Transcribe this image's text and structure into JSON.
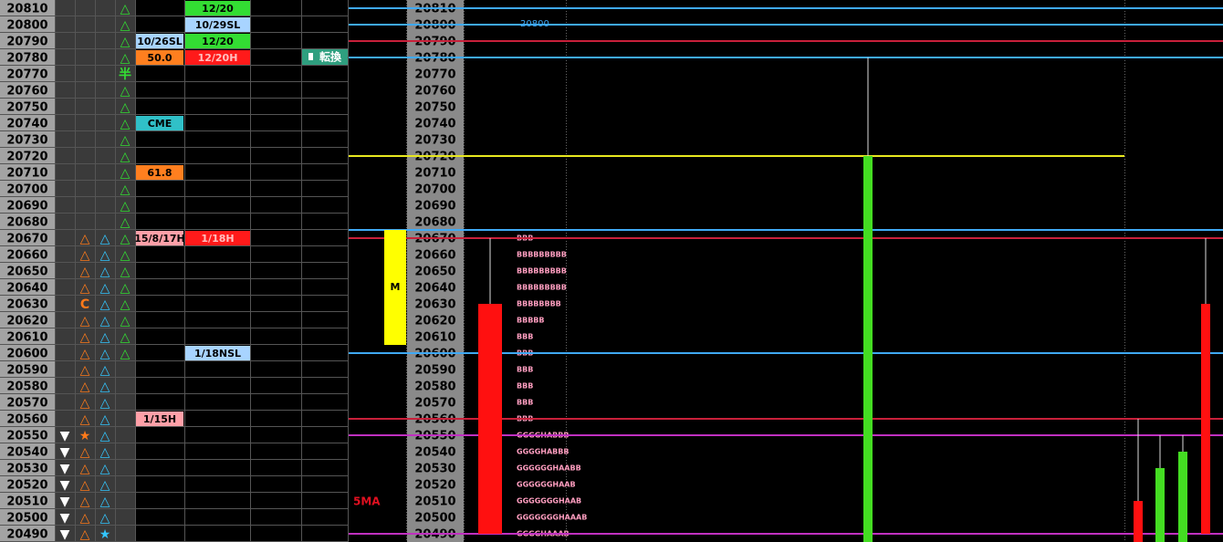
{
  "ladder": {
    "prices": [
      20810,
      20800,
      20790,
      20780,
      20770,
      20760,
      20750,
      20740,
      20730,
      20720,
      20710,
      20700,
      20690,
      20680,
      20670,
      20660,
      20650,
      20640,
      20630,
      20620,
      20610,
      20600,
      20590,
      20580,
      20570,
      20560,
      20550,
      20540,
      20530,
      20520,
      20510,
      20500,
      20490
    ],
    "col_b": {
      "color": "#ffffff",
      "marks": [
        null,
        null,
        null,
        null,
        null,
        null,
        null,
        null,
        null,
        null,
        null,
        null,
        null,
        null,
        null,
        null,
        null,
        null,
        null,
        null,
        null,
        null,
        null,
        null,
        null,
        null,
        "▼",
        "▼",
        "▼",
        "▼",
        "▼",
        "▼",
        "▼"
      ]
    },
    "col_c": {
      "color": "#ff7a1a",
      "marks": [
        null,
        null,
        null,
        null,
        null,
        null,
        null,
        null,
        null,
        null,
        null,
        null,
        null,
        null,
        "△",
        "△",
        "△",
        "△",
        "C",
        "△",
        "△",
        "△",
        "△",
        "△",
        "△",
        "△",
        "★",
        "△",
        "△",
        "△",
        "△",
        "△",
        "△"
      ]
    },
    "col_d": {
      "color": "#33c6ff",
      "marks": [
        null,
        null,
        null,
        null,
        null,
        null,
        null,
        null,
        null,
        null,
        null,
        null,
        null,
        null,
        "△",
        "△",
        "△",
        "△",
        "△",
        "△",
        "△",
        "△",
        "△",
        "△",
        "△",
        "△",
        "△",
        "△",
        "△",
        "△",
        "△",
        "△",
        "★"
      ]
    },
    "col_e": {
      "color": "#33dd33",
      "marks": [
        "△",
        "△",
        "△",
        "△",
        "半",
        "△",
        "△",
        "△",
        "△",
        "△",
        "△",
        "△",
        "△",
        "△",
        "△",
        "△",
        "△",
        "△",
        "△",
        "△",
        "△",
        "△",
        null,
        null,
        null,
        null,
        null,
        null,
        null,
        null,
        null,
        null,
        null
      ]
    },
    "col_f": [
      null,
      null,
      {
        "text": "10/26SL",
        "bg": "#a8d4ff",
        "color": "#000000"
      },
      {
        "text": "50.0",
        "bg": "#ff7f1f",
        "color": "#000000"
      },
      null,
      null,
      null,
      {
        "text": "CME",
        "bg": "#30c0c8",
        "color": "#000000"
      },
      null,
      null,
      {
        "text": "61.8",
        "bg": "#ff7f1f",
        "color": "#000000"
      },
      null,
      null,
      null,
      {
        "text": "15/8/17H",
        "bg": "#ffa0a8",
        "color": "#000000"
      },
      null,
      null,
      null,
      null,
      null,
      null,
      null,
      null,
      null,
      null,
      {
        "text": "1/15H",
        "bg": "#ffa0a8",
        "color": "#000000"
      },
      null,
      null,
      null,
      null,
      null,
      null,
      null
    ],
    "col_g": [
      {
        "text": "12/20",
        "bg": "#33dd33",
        "color": "#000000"
      },
      {
        "text": "10/29SL",
        "bg": "#a8d4ff",
        "color": "#000000"
      },
      {
        "text": "12/20",
        "bg": "#33dd33",
        "color": "#000000"
      },
      {
        "text": "12/20H",
        "bg": "#ff1a1a",
        "color": "#ffc0c0"
      },
      null,
      null,
      null,
      null,
      null,
      null,
      null,
      null,
      null,
      null,
      {
        "text": "1/18H",
        "bg": "#ff1a1a",
        "color": "#ffc0c0"
      },
      null,
      null,
      null,
      null,
      null,
      null,
      {
        "text": "1/18NSL",
        "bg": "#a8d4ff",
        "color": "#000000"
      },
      null,
      null,
      null,
      null,
      null,
      null,
      null,
      null,
      null,
      null,
      null
    ]
  },
  "button": {
    "label": "転換"
  },
  "chart": {
    "ma_label": "5MA",
    "levels": [
      {
        "price": 20810,
        "color": "#3fa9f5"
      },
      {
        "price": 20800,
        "color": "#3fa9f5",
        "labeled": true
      },
      {
        "price": 20790,
        "color": "#c8203a"
      },
      {
        "price": 20780,
        "color": "#3fa9f5"
      },
      {
        "price": 20720,
        "color": "#e8e820"
      },
      {
        "price": 20675,
        "color": "#3fa9f5"
      },
      {
        "price": 20670,
        "color": "#c8203a"
      },
      {
        "price": 20600,
        "color": "#3fa9f5"
      },
      {
        "price": 20560,
        "color": "#c8203a"
      },
      {
        "price": 20550,
        "color": "#c030c0"
      },
      {
        "price": 20490,
        "color": "#c030c0"
      }
    ],
    "value_area": {
      "label": "M",
      "high": 20675,
      "low": 20605,
      "color": "#ffff00"
    },
    "tpo": [
      null,
      null,
      null,
      null,
      null,
      null,
      null,
      null,
      null,
      null,
      null,
      null,
      null,
      null,
      "BBB",
      "BBBBBBBBB",
      "BBBBBBBBB",
      "BBBBBBBBB",
      "BBBBBBBB",
      "BBBBB",
      "BBB",
      "BBB",
      "BBB",
      "BBB",
      "BBB",
      "BBB",
      "GGGGHABBB",
      "GGGGHABBB",
      "GGGGGGHAABB",
      "GGGGGGHAAB",
      "GGGGGGGHAAB",
      "GGGGGGGHAAAB",
      "GGGGHAAAB"
    ],
    "candles": [
      {
        "color": "#ff1010",
        "open": 20630,
        "close": 20490,
        "high": 20670,
        "low": 20490
      },
      {
        "color": "#44dd22",
        "open": 20480,
        "close": 20720,
        "high": 20780,
        "low": 20480
      },
      {
        "color": "#ff1010",
        "open": 20510,
        "close": 20480,
        "high": 20560,
        "low": 20480
      },
      {
        "color": "#44dd22",
        "open": 20480,
        "close": 20530,
        "high": 20550,
        "low": 20480
      },
      {
        "color": "#44dd22",
        "open": 20480,
        "close": 20540,
        "high": 20550,
        "low": 20480
      },
      {
        "color": "#ff1010",
        "open": 20630,
        "close": 20490,
        "high": 20670,
        "low": 20490
      }
    ]
  }
}
